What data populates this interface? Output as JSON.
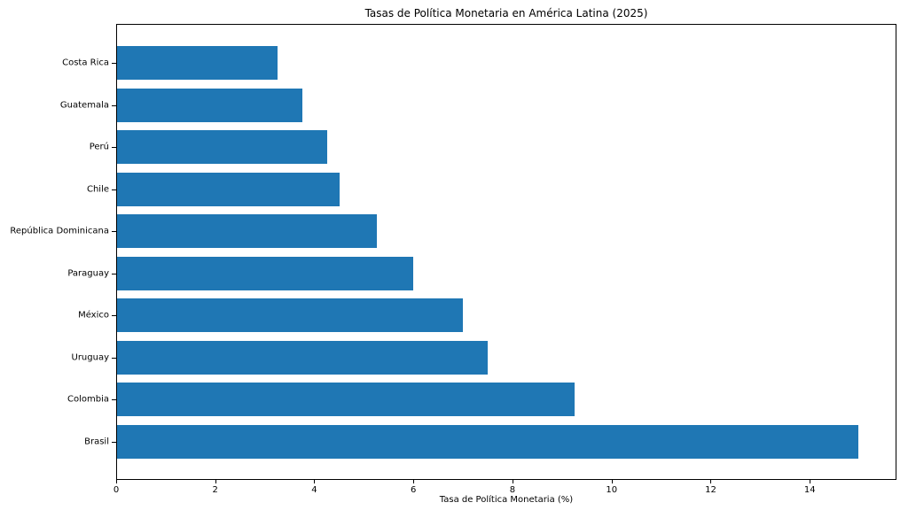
{
  "chart_data": {
    "type": "bar",
    "orientation": "horizontal",
    "title": "Tasas de Política Monetaria en América Latina (2025)",
    "xlabel": "Tasa de Política Monetaria (%)",
    "ylabel": "",
    "categories": [
      "Costa Rica",
      "Guatemala",
      "Perú",
      "Chile",
      "República Dominicana",
      "Paraguay",
      "México",
      "Uruguay",
      "Colombia",
      "Brasil"
    ],
    "values": [
      3.25,
      3.75,
      4.25,
      4.5,
      5.25,
      6.0,
      7.0,
      7.5,
      9.25,
      15.0
    ],
    "xlim": [
      0,
      15.75
    ],
    "xticks": [
      0,
      2,
      4,
      6,
      8,
      10,
      12,
      14
    ],
    "bar_color": "#1f77b4",
    "axis_color": "#000000",
    "background_color": "#ffffff",
    "grid": false,
    "legend": null
  }
}
